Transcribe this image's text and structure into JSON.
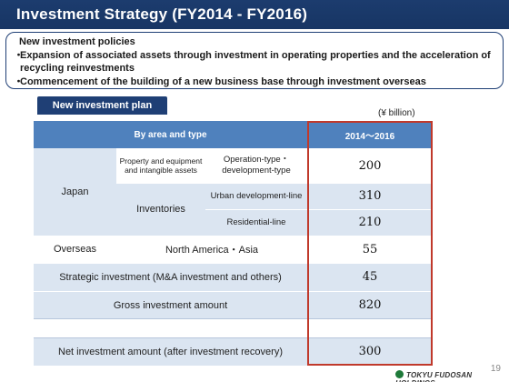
{
  "header": {
    "title": "Investment Strategy (FY2014 - FY2016)"
  },
  "policies": {
    "heading": "New investment policies",
    "items": [
      "Expansion of associated assets through investment in operating properties and the acceleration of recycling reinvestments",
      "Commencement of the building of a new business base through investment overseas"
    ]
  },
  "plan": {
    "tab_label": "New investment plan",
    "unit": "(¥ billion)",
    "columns": {
      "category": "By area and type",
      "period": "2014〜2016"
    },
    "japan": {
      "label": "Japan",
      "property_label": "Property and equipment and intangible assets",
      "operation_label": "Operation-type・development-type",
      "operation_value": "200",
      "inventories_label": "Inventories",
      "urban_label": "Urban development-line",
      "urban_value": "310",
      "residential_label": "Residential-line",
      "residential_value": "210"
    },
    "overseas": {
      "label": "Overseas",
      "region": "North America・Asia",
      "value": "55"
    },
    "strategic": {
      "label": "Strategic investment (M&A investment and others)",
      "value": "45"
    },
    "gross": {
      "label": "Gross investment amount",
      "value": "820"
    },
    "net": {
      "label": "Net investment amount (after investment recovery)",
      "value": "300"
    }
  },
  "footer": {
    "page_number": "19",
    "company": "TOKYU FUDOSAN HOLDINGS"
  }
}
